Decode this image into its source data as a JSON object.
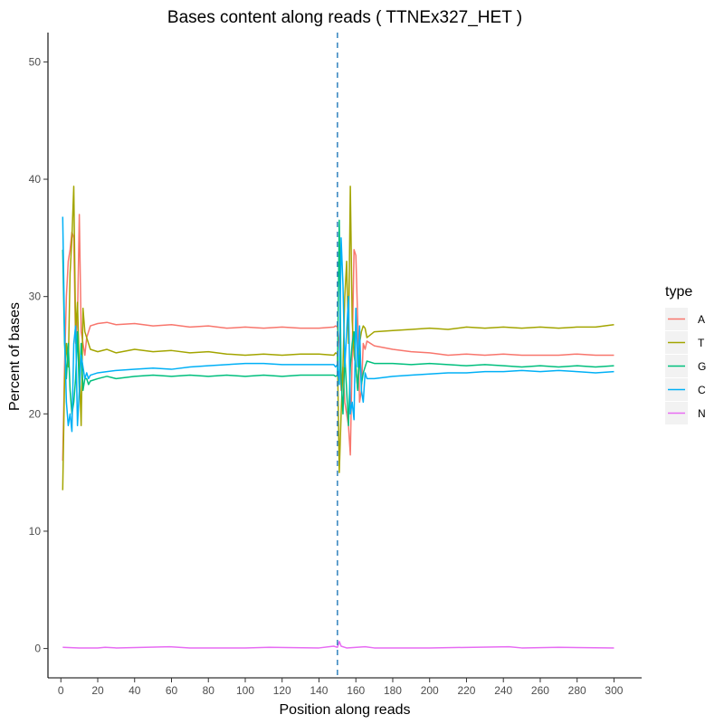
{
  "chart_data": {
    "type": "line",
    "title": "Bases content along reads ( TTNEx327_HET )",
    "xlabel": "Position along reads",
    "ylabel": "Percent of bases",
    "xlim": [
      -7,
      315
    ],
    "ylim": [
      -2.5,
      52.5
    ],
    "x_ticks": [
      0,
      20,
      40,
      60,
      80,
      100,
      120,
      140,
      160,
      180,
      200,
      220,
      240,
      260,
      280,
      300
    ],
    "y_ticks": [
      0,
      10,
      20,
      30,
      40,
      50
    ],
    "vline_x": 150,
    "vline_color": "#3182bd",
    "grid": false,
    "legend": {
      "title": "type",
      "position": "right"
    },
    "series": [
      {
        "name": "A",
        "color": "#F8766D",
        "points": [
          [
            1,
            16
          ],
          [
            2,
            24
          ],
          [
            3,
            30
          ],
          [
            4,
            33
          ],
          [
            5,
            34
          ],
          [
            6,
            35.5
          ],
          [
            7,
            35
          ],
          [
            8,
            26
          ],
          [
            9,
            28
          ],
          [
            10,
            37
          ],
          [
            11,
            27
          ],
          [
            12,
            26
          ],
          [
            13,
            25
          ],
          [
            14,
            26.5
          ],
          [
            15,
            27
          ],
          [
            16,
            27.5
          ],
          [
            20,
            27.7
          ],
          [
            25,
            27.8
          ],
          [
            30,
            27.6
          ],
          [
            40,
            27.7
          ],
          [
            50,
            27.5
          ],
          [
            60,
            27.6
          ],
          [
            70,
            27.4
          ],
          [
            80,
            27.5
          ],
          [
            90,
            27.3
          ],
          [
            100,
            27.4
          ],
          [
            110,
            27.3
          ],
          [
            120,
            27.4
          ],
          [
            130,
            27.3
          ],
          [
            140,
            27.3
          ],
          [
            148,
            27.4
          ],
          [
            149,
            27.5
          ],
          [
            150,
            27.4
          ],
          [
            151,
            26
          ],
          [
            152,
            22
          ],
          [
            153,
            24
          ],
          [
            154,
            21
          ],
          [
            155,
            20
          ],
          [
            156,
            19
          ],
          [
            157,
            16.5
          ],
          [
            158,
            25
          ],
          [
            159,
            34
          ],
          [
            160,
            33.5
          ],
          [
            161,
            28
          ],
          [
            162,
            21
          ],
          [
            163,
            22
          ],
          [
            164,
            26
          ],
          [
            165,
            25.5
          ],
          [
            166,
            26.2
          ],
          [
            170,
            25.8
          ],
          [
            180,
            25.5
          ],
          [
            190,
            25.3
          ],
          [
            200,
            25.2
          ],
          [
            210,
            25
          ],
          [
            220,
            25.1
          ],
          [
            230,
            25
          ],
          [
            240,
            25.1
          ],
          [
            250,
            25
          ],
          [
            260,
            25
          ],
          [
            270,
            25
          ],
          [
            280,
            25.1
          ],
          [
            290,
            25
          ],
          [
            300,
            25
          ]
        ]
      },
      {
        "name": "T",
        "color": "#A3A500",
        "points": [
          [
            1,
            13.5
          ],
          [
            2,
            23
          ],
          [
            3,
            26
          ],
          [
            4,
            24
          ],
          [
            5,
            32
          ],
          [
            6,
            35
          ],
          [
            7,
            39.4
          ],
          [
            8,
            27
          ],
          [
            9,
            29.5
          ],
          [
            10,
            24
          ],
          [
            11,
            19
          ],
          [
            12,
            29
          ],
          [
            13,
            27
          ],
          [
            14,
            26.5
          ],
          [
            15,
            26
          ],
          [
            16,
            25.5
          ],
          [
            20,
            25.3
          ],
          [
            25,
            25.5
          ],
          [
            30,
            25.2
          ],
          [
            40,
            25.5
          ],
          [
            50,
            25.3
          ],
          [
            60,
            25.4
          ],
          [
            70,
            25.2
          ],
          [
            80,
            25.3
          ],
          [
            90,
            25.1
          ],
          [
            100,
            25
          ],
          [
            110,
            25.1
          ],
          [
            120,
            25
          ],
          [
            130,
            25.1
          ],
          [
            140,
            25.1
          ],
          [
            148,
            25
          ],
          [
            149,
            25.2
          ],
          [
            150,
            25.1
          ],
          [
            151,
            15
          ],
          [
            152,
            20
          ],
          [
            153,
            24
          ],
          [
            154,
            30
          ],
          [
            155,
            33
          ],
          [
            156,
            26
          ],
          [
            157,
            39.4
          ],
          [
            158,
            28
          ],
          [
            159,
            25
          ],
          [
            160,
            24
          ],
          [
            161,
            22
          ],
          [
            162,
            26
          ],
          [
            163,
            27
          ],
          [
            164,
            27.5
          ],
          [
            165,
            27.3
          ],
          [
            166,
            26.5
          ],
          [
            170,
            27
          ],
          [
            180,
            27.1
          ],
          [
            190,
            27.2
          ],
          [
            200,
            27.3
          ],
          [
            210,
            27.2
          ],
          [
            220,
            27.4
          ],
          [
            230,
            27.3
          ],
          [
            240,
            27.4
          ],
          [
            250,
            27.3
          ],
          [
            260,
            27.4
          ],
          [
            270,
            27.3
          ],
          [
            280,
            27.4
          ],
          [
            290,
            27.4
          ],
          [
            300,
            27.6
          ]
        ]
      },
      {
        "name": "G",
        "color": "#00BF7D",
        "points": [
          [
            1,
            34
          ],
          [
            2,
            26
          ],
          [
            3,
            23
          ],
          [
            4,
            26
          ],
          [
            5,
            22
          ],
          [
            6,
            20
          ],
          [
            7,
            21
          ],
          [
            8,
            23
          ],
          [
            9,
            27
          ],
          [
            10,
            22
          ],
          [
            11,
            26
          ],
          [
            12,
            22
          ],
          [
            13,
            23
          ],
          [
            14,
            23
          ],
          [
            15,
            22.5
          ],
          [
            16,
            22.8
          ],
          [
            20,
            23
          ],
          [
            25,
            23.2
          ],
          [
            30,
            23
          ],
          [
            40,
            23.2
          ],
          [
            50,
            23.3
          ],
          [
            60,
            23.2
          ],
          [
            70,
            23.3
          ],
          [
            80,
            23.2
          ],
          [
            90,
            23.3
          ],
          [
            100,
            23.2
          ],
          [
            110,
            23.3
          ],
          [
            120,
            23.2
          ],
          [
            130,
            23.3
          ],
          [
            140,
            23.3
          ],
          [
            148,
            23.3
          ],
          [
            149,
            23.2
          ],
          [
            150,
            23.3
          ],
          [
            151,
            36.5
          ],
          [
            152,
            23
          ],
          [
            153,
            20
          ],
          [
            154,
            25
          ],
          [
            155,
            22
          ],
          [
            156,
            19
          ],
          [
            157,
            24
          ],
          [
            158,
            26
          ],
          [
            159,
            27
          ],
          [
            160,
            24
          ],
          [
            161,
            22
          ],
          [
            162,
            25
          ],
          [
            163,
            22.5
          ],
          [
            164,
            23.5
          ],
          [
            165,
            24
          ],
          [
            166,
            24.5
          ],
          [
            170,
            24.3
          ],
          [
            180,
            24.3
          ],
          [
            190,
            24.2
          ],
          [
            200,
            24.3
          ],
          [
            210,
            24.2
          ],
          [
            220,
            24.1
          ],
          [
            230,
            24.2
          ],
          [
            240,
            24.1
          ],
          [
            250,
            24
          ],
          [
            260,
            24.1
          ],
          [
            270,
            24
          ],
          [
            280,
            24.1
          ],
          [
            290,
            24
          ],
          [
            300,
            24.1
          ]
        ]
      },
      {
        "name": "C",
        "color": "#00B0F6",
        "points": [
          [
            1,
            36.8
          ],
          [
            2,
            27
          ],
          [
            3,
            21
          ],
          [
            4,
            19
          ],
          [
            5,
            20
          ],
          [
            6,
            18.5
          ],
          [
            7,
            26
          ],
          [
            8,
            27.5
          ],
          [
            9,
            19
          ],
          [
            10,
            22
          ],
          [
            11,
            25
          ],
          [
            12,
            24
          ],
          [
            13,
            23
          ],
          [
            14,
            23.5
          ],
          [
            15,
            23
          ],
          [
            16,
            23.3
          ],
          [
            20,
            23.5
          ],
          [
            25,
            23.6
          ],
          [
            30,
            23.7
          ],
          [
            40,
            23.8
          ],
          [
            50,
            23.9
          ],
          [
            60,
            23.8
          ],
          [
            70,
            24
          ],
          [
            80,
            24.1
          ],
          [
            90,
            24.2
          ],
          [
            100,
            24.3
          ],
          [
            110,
            24.3
          ],
          [
            120,
            24.2
          ],
          [
            130,
            24.2
          ],
          [
            140,
            24.2
          ],
          [
            148,
            24.2
          ],
          [
            149,
            24
          ],
          [
            150,
            24.2
          ],
          [
            151,
            22.5
          ],
          [
            152,
            35
          ],
          [
            153,
            31
          ],
          [
            154,
            24
          ],
          [
            155,
            27
          ],
          [
            156,
            30
          ],
          [
            157,
            20
          ],
          [
            158,
            21
          ],
          [
            159,
            19.5
          ],
          [
            160,
            29
          ],
          [
            161,
            24
          ],
          [
            162,
            27.5
          ],
          [
            163,
            22
          ],
          [
            164,
            21
          ],
          [
            165,
            23.5
          ],
          [
            166,
            23
          ],
          [
            170,
            23
          ],
          [
            180,
            23.2
          ],
          [
            190,
            23.3
          ],
          [
            200,
            23.4
          ],
          [
            210,
            23.5
          ],
          [
            220,
            23.5
          ],
          [
            230,
            23.6
          ],
          [
            240,
            23.6
          ],
          [
            250,
            23.7
          ],
          [
            260,
            23.6
          ],
          [
            270,
            23.7
          ],
          [
            280,
            23.6
          ],
          [
            290,
            23.5
          ],
          [
            300,
            23.6
          ]
        ]
      },
      {
        "name": "N",
        "color": "#E76BF3",
        "points": [
          [
            1,
            0.1
          ],
          [
            10,
            0.05
          ],
          [
            20,
            0.05
          ],
          [
            24,
            0.1
          ],
          [
            30,
            0.05
          ],
          [
            59,
            0.15
          ],
          [
            70,
            0.05
          ],
          [
            100,
            0.05
          ],
          [
            113,
            0.1
          ],
          [
            140,
            0.05
          ],
          [
            148,
            0.2
          ],
          [
            150,
            0.1
          ],
          [
            151,
            0.6
          ],
          [
            152,
            0.2
          ],
          [
            155,
            0.05
          ],
          [
            165,
            0.15
          ],
          [
            170,
            0.05
          ],
          [
            200,
            0.05
          ],
          [
            243,
            0.15
          ],
          [
            250,
            0.05
          ],
          [
            270,
            0.1
          ],
          [
            300,
            0.05
          ]
        ]
      }
    ]
  }
}
